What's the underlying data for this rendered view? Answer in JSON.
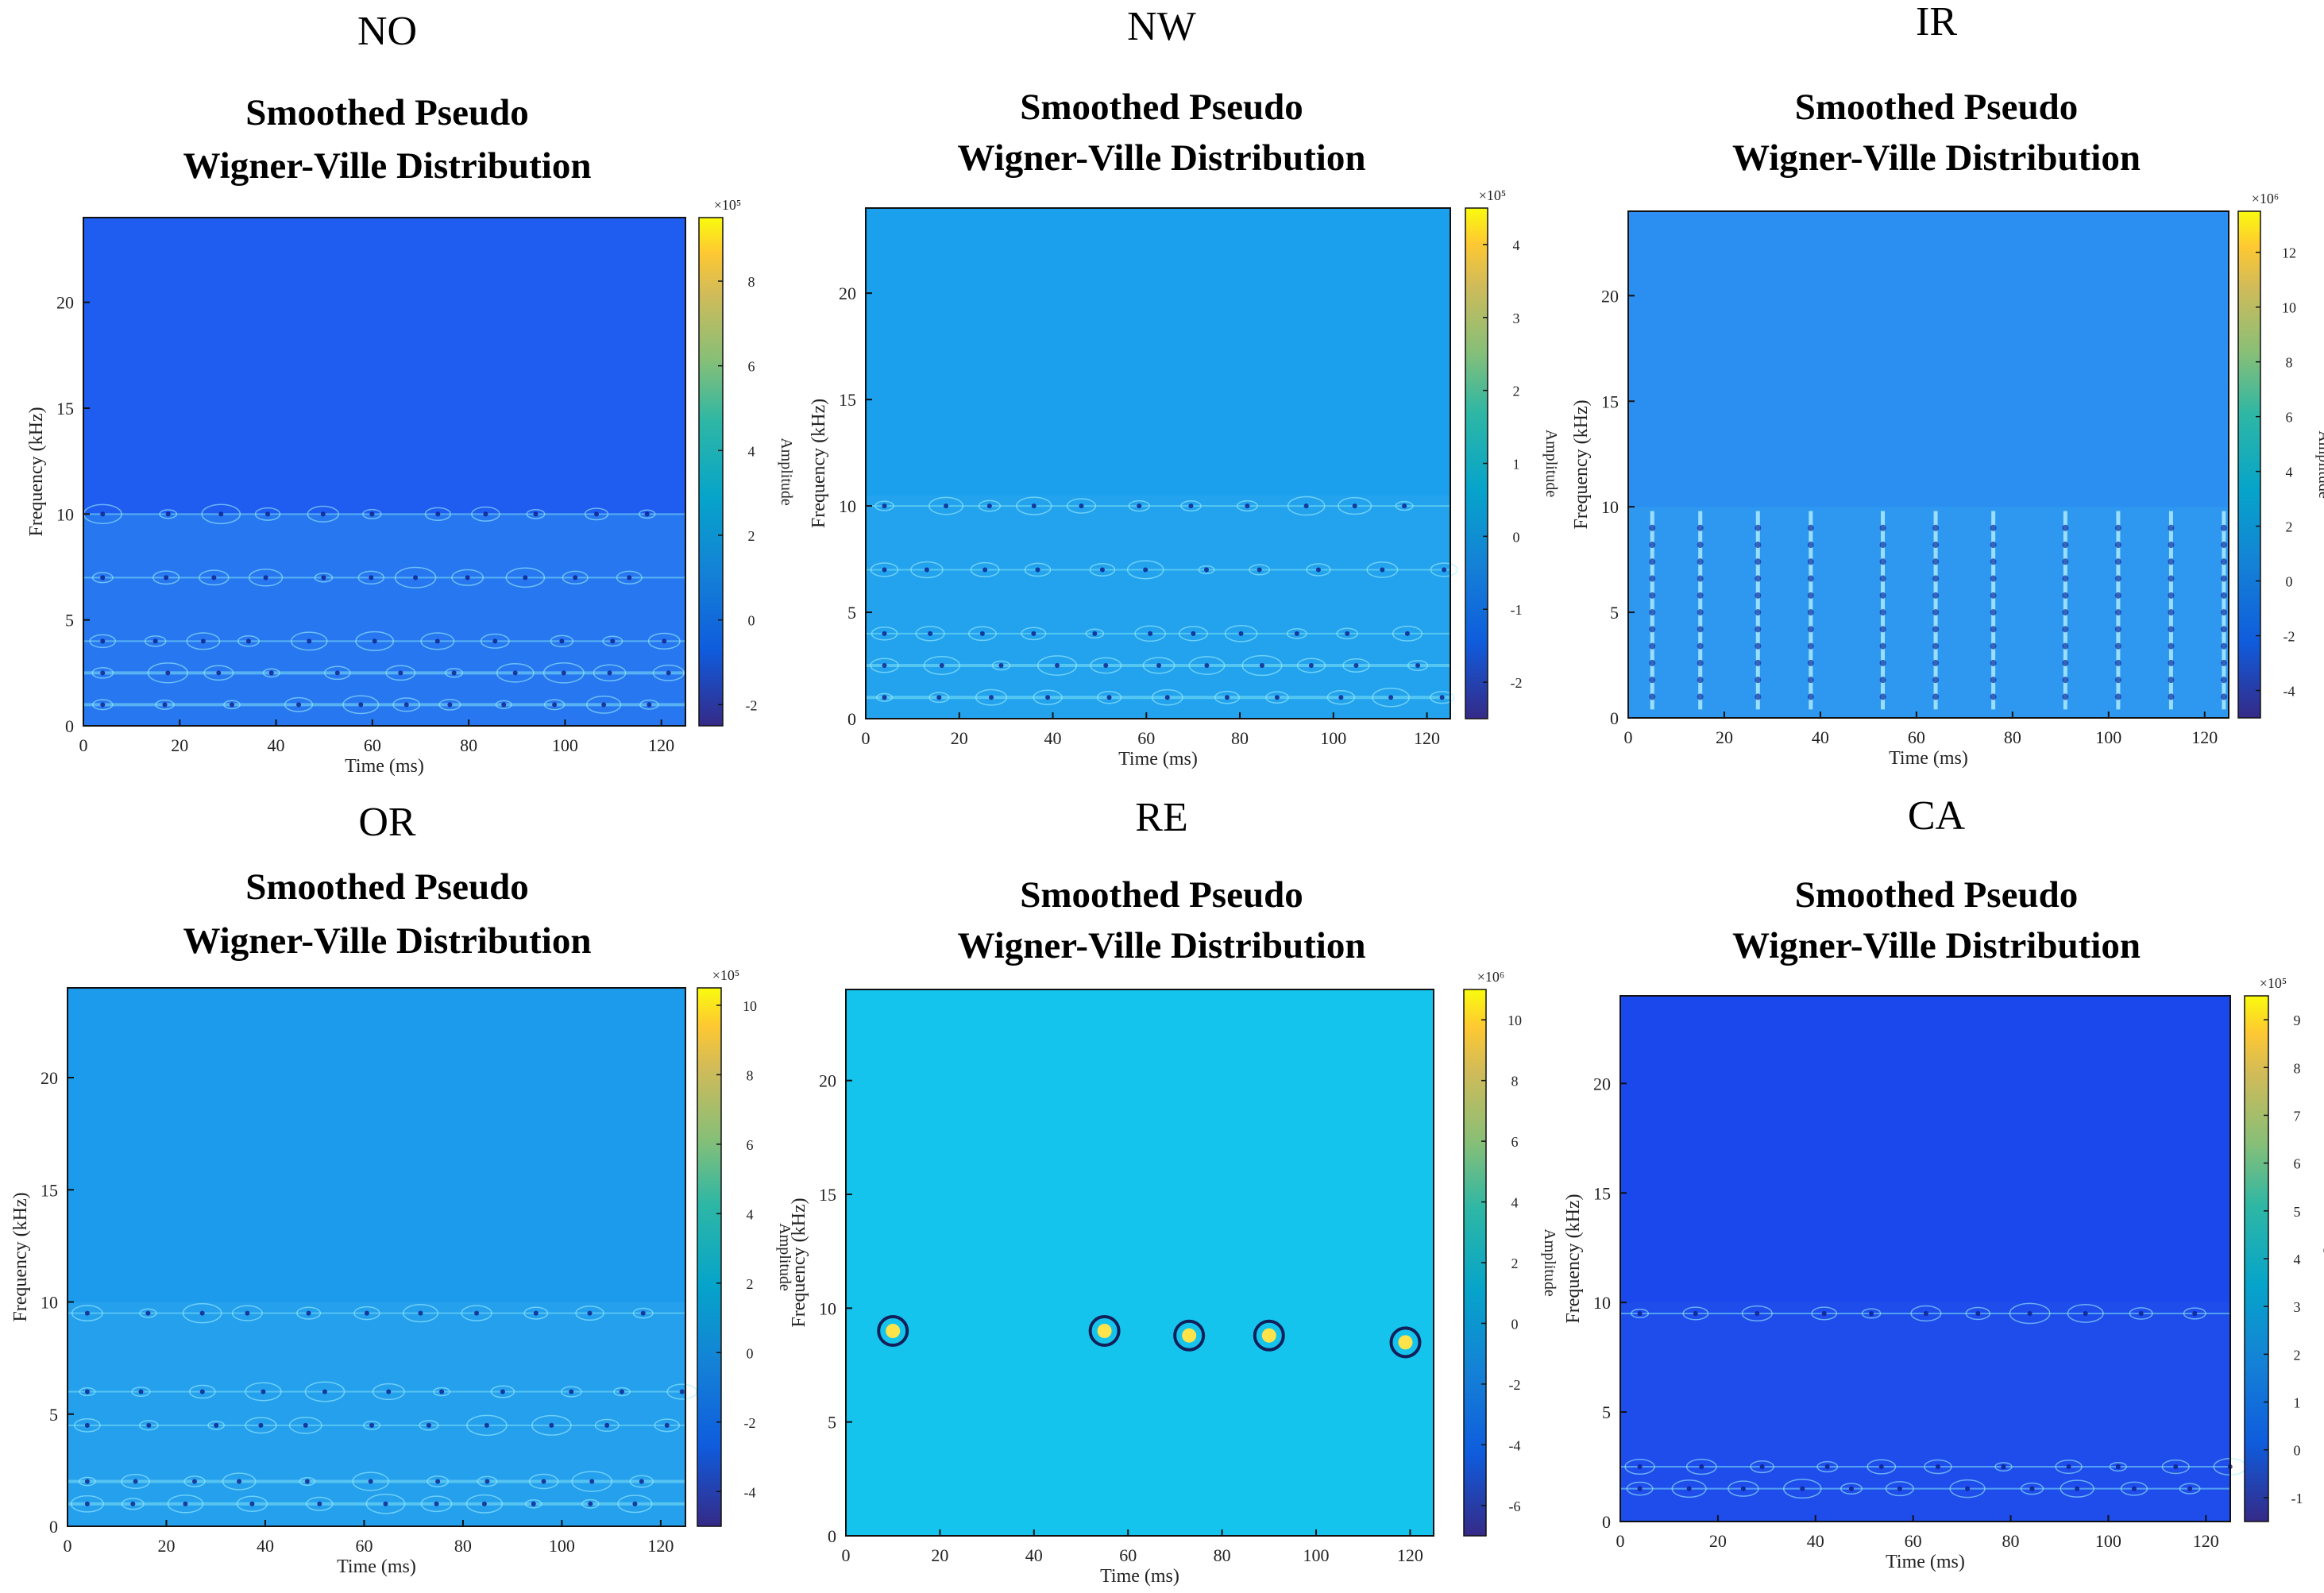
{
  "panels": [
    {
      "label": "NO",
      "title_line1": "Smoothed Pseudo",
      "title_line2": "Wigner-Ville Distribution",
      "xlabel": "Time (ms)",
      "ylabel": "Frequency (kHz)",
      "colorbar_label": "Amplitude",
      "colorbar_exp": "×10⁵",
      "xticks": [
        "0",
        "20",
        "40",
        "60",
        "80",
        "100",
        "120"
      ],
      "yticks": [
        "0",
        "5",
        "10",
        "15",
        "20"
      ],
      "cticks": [
        "-2",
        "0",
        "2",
        "4",
        "6",
        "8"
      ],
      "bg": "#1f5cf0"
    },
    {
      "label": "NW",
      "title_line1": "Smoothed Pseudo",
      "title_line2": "Wigner-Ville Distribution",
      "xlabel": "Time (ms)",
      "ylabel": "Frequency (kHz)",
      "colorbar_label": "Amplitude",
      "colorbar_exp": "×10⁵",
      "xticks": [
        "0",
        "20",
        "40",
        "60",
        "80",
        "100",
        "120"
      ],
      "yticks": [
        "0",
        "5",
        "10",
        "15",
        "20"
      ],
      "cticks": [
        "-2",
        "-1",
        "0",
        "1",
        "2",
        "3",
        "4"
      ],
      "bg": "#1aa0ec"
    },
    {
      "label": "IR",
      "title_line1": "Smoothed Pseudo",
      "title_line2": "Wigner-Ville Distribution",
      "xlabel": "Time (ms)",
      "ylabel": "Frequency (kHz)",
      "colorbar_label": "Amplitude",
      "colorbar_exp": "×10⁶",
      "xticks": [
        "0",
        "20",
        "40",
        "60",
        "80",
        "100",
        "120"
      ],
      "yticks": [
        "0",
        "5",
        "10",
        "15",
        "20"
      ],
      "cticks": [
        "-4",
        "-2",
        "0",
        "2",
        "4",
        "6",
        "8",
        "10",
        "12"
      ],
      "bg": "#2a8ff0"
    },
    {
      "label": "OR",
      "title_line1": "Smoothed Pseudo",
      "title_line2": "Wigner-Ville Distribution",
      "xlabel": "Time (ms)",
      "ylabel": "Frequency (kHz)",
      "colorbar_label": "Amplitude",
      "colorbar_exp": "×10⁵",
      "xticks": [
        "0",
        "20",
        "40",
        "60",
        "80",
        "100",
        "120"
      ],
      "yticks": [
        "0",
        "5",
        "10",
        "15",
        "20"
      ],
      "cticks": [
        "-4",
        "-2",
        "0",
        "2",
        "4",
        "6",
        "8",
        "10"
      ],
      "bg": "#1c9bec"
    },
    {
      "label": "RE",
      "title_line1": "Smoothed Pseudo",
      "title_line2": "Wigner-Ville Distribution",
      "xlabel": "Time (ms)",
      "ylabel": "Frequency (kHz)",
      "colorbar_label": "Amplitude",
      "colorbar_exp": "×10⁶",
      "xticks": [
        "0",
        "20",
        "40",
        "60",
        "80",
        "100",
        "120"
      ],
      "yticks": [
        "0",
        "5",
        "10",
        "15",
        "20"
      ],
      "cticks": [
        "-6",
        "-4",
        "-2",
        "0",
        "2",
        "4",
        "6",
        "8",
        "10"
      ],
      "bg": "#15c4ec"
    },
    {
      "label": "CA",
      "title_line1": "Smoothed Pseudo",
      "title_line2": "Wigner-Ville Distribution",
      "xlabel": "Time (ms)",
      "ylabel": "Frequency (kHz)",
      "colorbar_label": "Amplitude",
      "colorbar_exp": "×10⁵",
      "xticks": [
        "0",
        "20",
        "40",
        "60",
        "80",
        "100",
        "120"
      ],
      "yticks": [
        "0",
        "5",
        "10",
        "15",
        "20"
      ],
      "cticks": [
        "-1",
        "0",
        "1",
        "2",
        "3",
        "4",
        "5",
        "6",
        "7",
        "8",
        "9"
      ],
      "bg": "#1b48ec"
    }
  ],
  "chart_data": [
    {
      "type": "heatmap",
      "fault": "NO",
      "xlabel": "Time (ms)",
      "ylabel": "Frequency (kHz)",
      "xlim": [
        0,
        125
      ],
      "ylim": [
        0,
        24
      ],
      "clim": [
        -2.5,
        9.5
      ],
      "band_frequencies_khz": [
        10,
        7,
        4,
        2.5,
        1
      ],
      "energy_region_max_khz": 10
    },
    {
      "type": "heatmap",
      "fault": "NW",
      "xlabel": "Time (ms)",
      "ylabel": "Frequency (kHz)",
      "xlim": [
        0,
        125
      ],
      "ylim": [
        0,
        24
      ],
      "clim": [
        -2.5,
        4.5
      ],
      "band_frequencies_khz": [
        10,
        7,
        4,
        2.5,
        1
      ],
      "energy_region_max_khz": 10.5
    },
    {
      "type": "heatmap",
      "fault": "IR",
      "xlabel": "Time (ms)",
      "ylabel": "Frequency (kHz)",
      "xlim": [
        0,
        125
      ],
      "ylim": [
        0,
        24
      ],
      "clim": [
        -5,
        13.5
      ],
      "impulse_times_ms": [
        5,
        15,
        27,
        38,
        53,
        64,
        76,
        91,
        102,
        113,
        124
      ],
      "energy_region_max_khz": 10
    },
    {
      "type": "heatmap",
      "fault": "OR",
      "xlabel": "Time (ms)",
      "ylabel": "Frequency (kHz)",
      "xlim": [
        0,
        125
      ],
      "ylim": [
        0,
        24
      ],
      "clim": [
        -5,
        10.5
      ],
      "band_frequencies_khz": [
        9.5,
        6,
        4.5,
        2,
        1
      ],
      "energy_region_max_khz": 10
    },
    {
      "type": "heatmap",
      "fault": "RE",
      "xlabel": "Time (ms)",
      "ylabel": "Frequency (kHz)",
      "xlim": [
        0,
        125
      ],
      "ylim": [
        0,
        24
      ],
      "clim": [
        -7,
        11
      ],
      "hotspots": [
        {
          "t": 10,
          "f": 9
        },
        {
          "t": 55,
          "f": 9
        },
        {
          "t": 73,
          "f": 8.8
        },
        {
          "t": 90,
          "f": 8.8
        },
        {
          "t": 119,
          "f": 8.5
        }
      ]
    },
    {
      "type": "heatmap",
      "fault": "CA",
      "xlabel": "Time (ms)",
      "ylabel": "Frequency (kHz)",
      "xlim": [
        0,
        125
      ],
      "ylim": [
        0,
        24
      ],
      "clim": [
        -1.5,
        9.5
      ],
      "band_frequencies_khz": [
        9.5,
        2.5,
        1.5
      ],
      "energy_region_max_khz": 10
    }
  ]
}
